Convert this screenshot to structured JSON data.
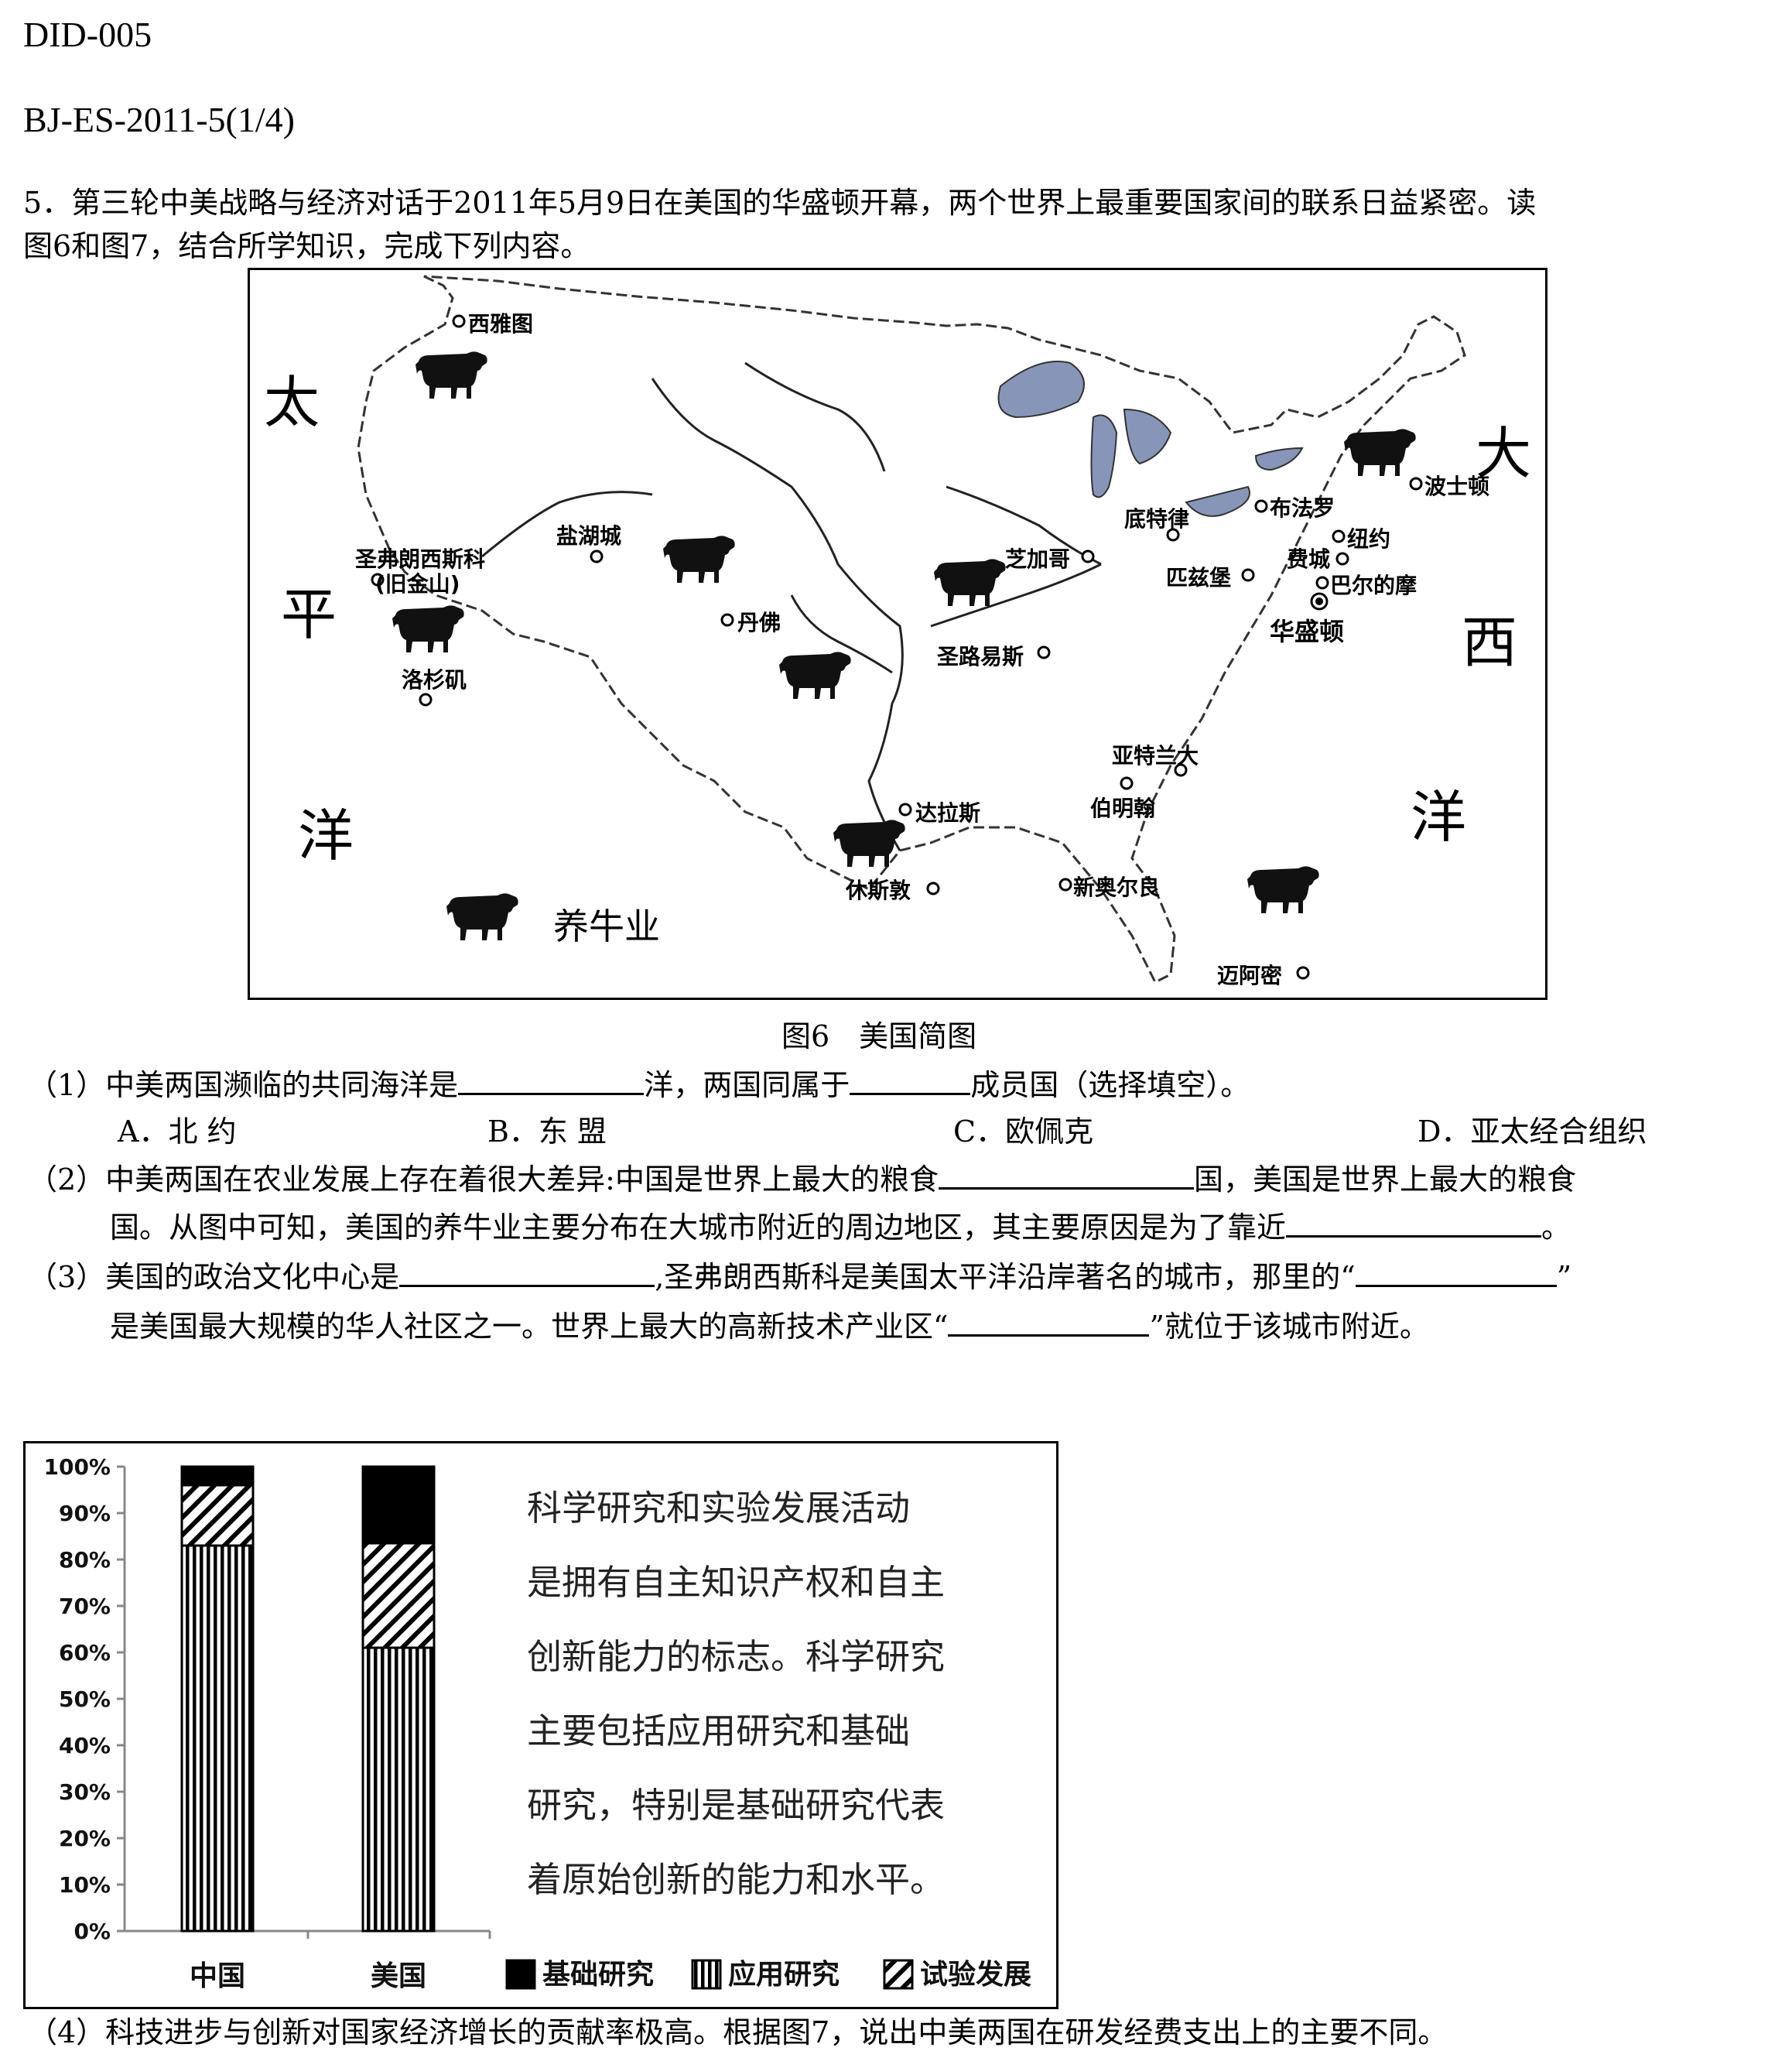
{
  "header": {
    "doc_id": "DID-005",
    "source": "BJ-ES-2011-5(1/4)"
  },
  "question": {
    "intro_line1": "5．第三轮中美战略与经济对话于2011年5月9日在美国的华盛顿开幕，两个世界上最重要国家间的联系日益紧密。读",
    "intro_line2": "图6和图7，结合所学知识，完成下列内容。"
  },
  "map": {
    "caption": "图6　美国简图",
    "legend_label": "养牛业",
    "oceans": {
      "pacific": [
        "太",
        "平",
        "洋"
      ],
      "atlantic": [
        "大",
        "西",
        "洋"
      ]
    },
    "cities": [
      {
        "name": "西雅图"
      },
      {
        "name": "盐湖城"
      },
      {
        "name": "圣弗朗西斯科"
      },
      {
        "name": "(旧金山)"
      },
      {
        "name": "丹佛"
      },
      {
        "name": "洛杉矶"
      },
      {
        "name": "芝加哥"
      },
      {
        "name": "底特律"
      },
      {
        "name": "布法罗"
      },
      {
        "name": "波士顿"
      },
      {
        "name": "纽约"
      },
      {
        "name": "费城"
      },
      {
        "name": "匹兹堡"
      },
      {
        "name": "巴尔的摩"
      },
      {
        "name": "华盛顿"
      },
      {
        "name": "圣路易斯"
      },
      {
        "name": "亚特兰大"
      },
      {
        "name": "伯明翰"
      },
      {
        "name": "达拉斯"
      },
      {
        "name": "休斯敦"
      },
      {
        "name": "新奥尔良"
      },
      {
        "name": "迈阿密"
      }
    ]
  },
  "sub_questions": {
    "q1": {
      "part_a": "（1）中美两国濒临的共同海洋是",
      "part_b": "洋，两国同属于",
      "part_c": "成员国（选择填空）。",
      "options": [
        "A．北 约",
        "B．东 盟",
        "C．欧佩克",
        "D．亚太经合组织"
      ]
    },
    "q2": {
      "part_a": "（2）中美两国在农业发展上存在着很大差异:中国是世界上最大的粮食",
      "part_b": "国，美国是世界上最大的粮食",
      "part_c": "国。从图中可知，美国的养牛业主要分布在大城市附近的周边地区，其主要原因是为了靠近",
      "part_d": "。"
    },
    "q3": {
      "part_a": "（3）美国的政治文化中心是",
      "part_b": ",圣弗朗西斯科是美国太平洋沿岸著名的城市，那里的“",
      "part_c": "”",
      "part_d": "是美国最大规模的华人社区之一。世界上最大的高新技术产业区“",
      "part_e": "”就位于该城市附近。"
    },
    "q4": "（4）科技进步与创新对国家经济增长的贡献率极高。根据图7，说出中美两国在研发经费支出上的主要不同。"
  },
  "chart_data": {
    "type": "bar",
    "stacked": true,
    "categories": [
      "中国",
      "美国"
    ],
    "series": [
      {
        "name": "应用研究",
        "values": [
          83,
          61
        ],
        "pattern": "vertical-stripes"
      },
      {
        "name": "试验发展",
        "values": [
          13,
          22.5
        ],
        "pattern": "diagonal-stripes"
      },
      {
        "name": "基础研究",
        "values": [
          4,
          16.5
        ],
        "pattern": "solid-black"
      }
    ],
    "y_ticks": [
      "0%",
      "10%",
      "20%",
      "30%",
      "40%",
      "50%",
      "60%",
      "70%",
      "80%",
      "90%",
      "100%"
    ],
    "ylim": [
      0,
      100
    ],
    "legend_order": [
      "基础研究",
      "应用研究",
      "试验发展"
    ],
    "legend_position": "bottom",
    "annotation_lines": [
      "科学研究和实验发展活动",
      "是拥有自主知识产权和自主",
      "创新能力的标志。科学研究",
      "主要包括应用研究和基础",
      "研究，特别是基础研究代表",
      "着原始创新的能力和水平。"
    ]
  }
}
